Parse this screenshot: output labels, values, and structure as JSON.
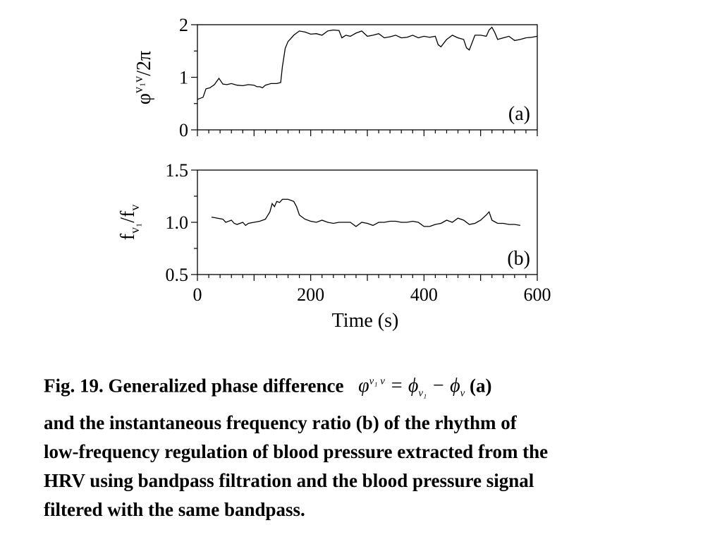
{
  "chart_data": [
    {
      "type": "line",
      "panel_label": "(a)",
      "ylabel_base": "φ",
      "ylabel_sup": "v₁v",
      "ylabel_tail": "/2π",
      "xlabel": "",
      "xlim": [
        0,
        600
      ],
      "ylim": [
        0,
        2
      ],
      "yticks": [
        0,
        1,
        2
      ],
      "yticklabels": [
        "0",
        "1",
        "2"
      ],
      "x_minor_step": 20,
      "series": [
        {
          "x": [
            0,
            10,
            15,
            22,
            30,
            38,
            45,
            52,
            60,
            70,
            80,
            90,
            100,
            105,
            110,
            115,
            120,
            130,
            140,
            147,
            150,
            155,
            160,
            165,
            170,
            180,
            190,
            200,
            210,
            220,
            230,
            240,
            250,
            255,
            262,
            270,
            280,
            290,
            300,
            310,
            320,
            330,
            340,
            350,
            360,
            370,
            380,
            390,
            400,
            410,
            420,
            425,
            430,
            440,
            450,
            460,
            470,
            475,
            480,
            490,
            500,
            510,
            515,
            520,
            525,
            530,
            540,
            550,
            560,
            570,
            580,
            590,
            600
          ],
          "y": [
            0.58,
            0.62,
            0.78,
            0.8,
            0.86,
            0.98,
            0.87,
            0.86,
            0.88,
            0.85,
            0.84,
            0.86,
            0.85,
            0.82,
            0.82,
            0.8,
            0.85,
            0.88,
            0.88,
            0.9,
            1.2,
            1.55,
            1.68,
            1.74,
            1.8,
            1.88,
            1.86,
            1.82,
            1.83,
            1.8,
            1.88,
            1.9,
            1.89,
            1.75,
            1.8,
            1.78,
            1.84,
            1.88,
            1.78,
            1.8,
            1.83,
            1.75,
            1.77,
            1.8,
            1.75,
            1.76,
            1.8,
            1.75,
            1.78,
            1.76,
            1.78,
            1.62,
            1.58,
            1.72,
            1.8,
            1.75,
            1.72,
            1.56,
            1.52,
            1.8,
            1.8,
            1.78,
            1.9,
            1.95,
            1.85,
            1.72,
            1.75,
            1.78,
            1.7,
            1.72,
            1.75,
            1.76,
            1.78
          ]
        }
      ]
    },
    {
      "type": "line",
      "panel_label": "(b)",
      "ylabel_base": "f",
      "ylabel_num_sub": "v₁",
      "ylabel_mid": "/f",
      "ylabel_den_sub": "v",
      "xlabel": "Time (s)",
      "xlim": [
        0,
        600
      ],
      "ylim": [
        0.5,
        1.5
      ],
      "xticks": [
        0,
        200,
        400,
        600
      ],
      "xticklabels": [
        "0",
        "200",
        "400",
        "600"
      ],
      "yticks": [
        0.5,
        1.0,
        1.5
      ],
      "yticklabels": [
        "0.5",
        "1.0",
        "1.5"
      ],
      "x_minor_step": 20,
      "series": [
        {
          "x": [
            25,
            35,
            45,
            50,
            60,
            65,
            70,
            80,
            85,
            90,
            100,
            110,
            120,
            128,
            132,
            136,
            140,
            145,
            150,
            160,
            170,
            175,
            180,
            190,
            200,
            210,
            220,
            230,
            240,
            250,
            260,
            270,
            280,
            290,
            300,
            310,
            320,
            330,
            340,
            350,
            360,
            370,
            380,
            390,
            400,
            410,
            420,
            430,
            440,
            450,
            460,
            470,
            480,
            490,
            500,
            510,
            515,
            520,
            530,
            540,
            550,
            560,
            570
          ],
          "y": [
            1.05,
            1.04,
            1.03,
            1.0,
            1.02,
            0.99,
            0.98,
            1.0,
            0.97,
            0.99,
            1.0,
            1.01,
            1.03,
            1.1,
            1.18,
            1.15,
            1.2,
            1.19,
            1.22,
            1.22,
            1.2,
            1.15,
            1.07,
            1.03,
            1.01,
            1.0,
            1.02,
            1.0,
            0.99,
            1.0,
            1.0,
            1.0,
            0.96,
            1.0,
            0.99,
            0.97,
            1.0,
            1.0,
            1.01,
            1.01,
            1.0,
            1.0,
            1.01,
            1.0,
            0.96,
            0.96,
            0.98,
            0.99,
            1.02,
            1.0,
            1.04,
            1.02,
            0.98,
            0.99,
            1.02,
            1.07,
            1.1,
            1.02,
            0.99,
            0.99,
            0.98,
            0.98,
            0.97
          ]
        }
      ]
    }
  ],
  "caption": {
    "line1_start": "Fig. 19. Generalized phase difference",
    "formula_phi": "φ",
    "formula_sup": "v₁ v",
    "formula_eq": " = ϕ",
    "formula_sub1": "v₁",
    "formula_minus": " − ϕ",
    "formula_sub2": "v",
    "line1_end": "(a)",
    "line2": "and the instantaneous frequency ratio (b) of the rhythm of",
    "line3": "low-frequency regulation of blood pressure extracted from the",
    "line4": "HRV using bandpass filtration and the blood pressure signal",
    "line5": "filtered with the same bandpass."
  }
}
